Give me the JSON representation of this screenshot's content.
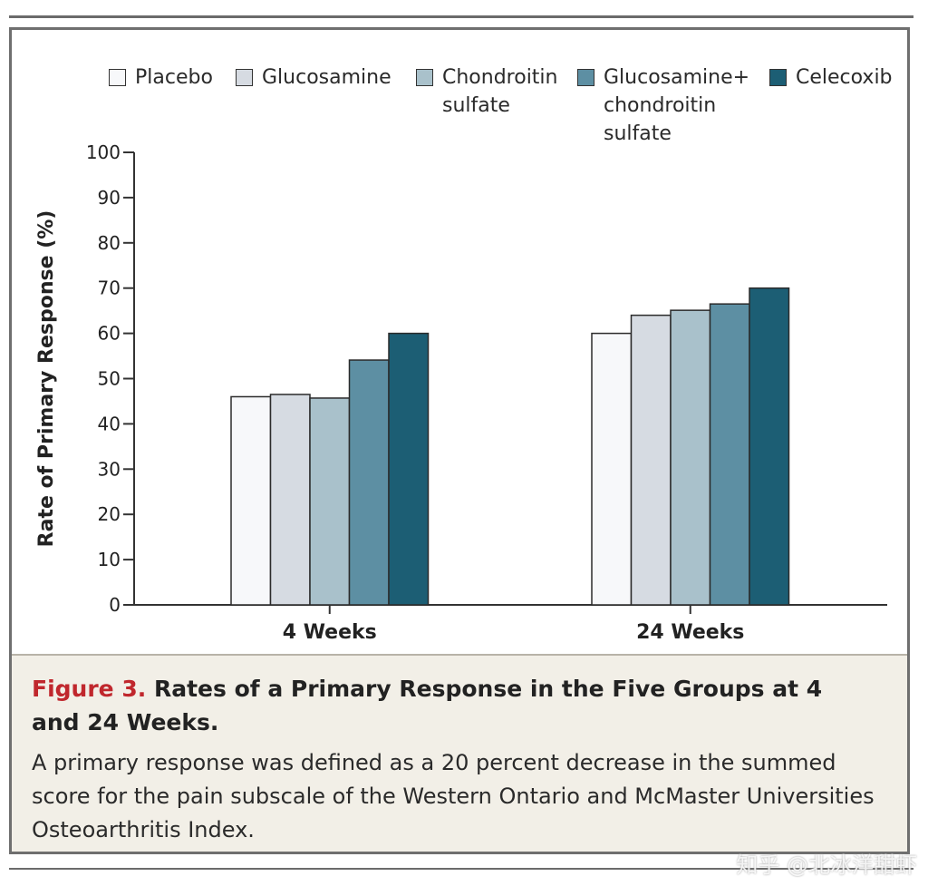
{
  "chart_data": {
    "type": "bar",
    "categories": [
      "4 Weeks",
      "24 Weeks"
    ],
    "series": [
      {
        "name": "Placebo",
        "values": [
          46,
          60
        ],
        "color": "#f7f8fa"
      },
      {
        "name": "Glucosamine",
        "values": [
          46.5,
          64
        ],
        "color": "#d6dbe2"
      },
      {
        "name": "Chondroitin sulfate",
        "values": [
          45.7,
          65.1
        ],
        "color": "#a9c1cb"
      },
      {
        "name": "Glucosamine+ chondroitin sulfate",
        "values": [
          54.1,
          66.5
        ],
        "color": "#5d8fa3"
      },
      {
        "name": "Celecoxib",
        "values": [
          60,
          70
        ],
        "color": "#1c5e74"
      }
    ],
    "legend_labels": [
      "Placebo",
      "Glucosamine",
      "Chondroitin\nsulfate",
      "Glucosamine+\nchondroitin\nsulfate",
      "Celecoxib"
    ],
    "ylabel": "Rate of Primary Response (%)",
    "xlabel": "",
    "ylim": [
      0,
      100
    ],
    "yticks": [
      "0",
      "10",
      "20",
      "30",
      "40",
      "50",
      "60",
      "70",
      "80",
      "90",
      "100"
    ],
    "legend_position": "top"
  },
  "caption": {
    "figure_label": "Figure 3.",
    "title": "Rates of a Primary Response in the Five Groups at 4 and 24 Weeks.",
    "body": "A primary response was defined as a 20 percent decrease in the summed score for the pain subscale of the Western Ontario and McMaster Universities Osteoarthritis Index."
  },
  "watermark": "知乎 @北冰洋甜虾"
}
